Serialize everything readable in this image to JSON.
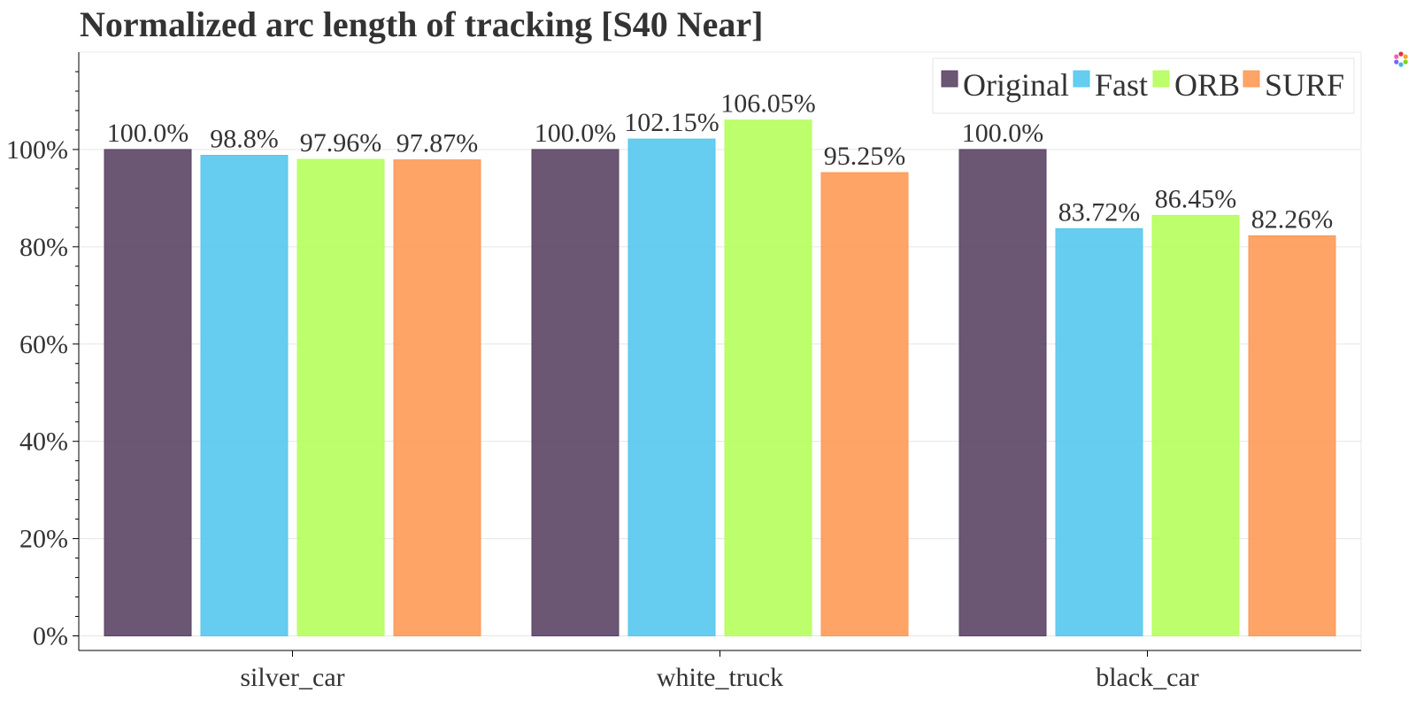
{
  "toolbar": {
    "logo_icon": "bokeh-logo-icon",
    "logo_colors": [
      "#e02f4b",
      "#f5a623",
      "#7ed321",
      "#3fb5e8",
      "#7b61ff",
      "#ff5ca8"
    ]
  },
  "chart_data": {
    "type": "bar",
    "title": "Normalized arc length of tracking [S40 Near]",
    "xlabel": "",
    "ylabel": "",
    "categories": [
      "silver_car",
      "white_truck",
      "black_car"
    ],
    "series": [
      {
        "name": "Original",
        "color": "#5b4465",
        "values": [
          100.0,
          100.0,
          100.0
        ],
        "labels": [
          "100.0%",
          "100.0%",
          "100.0%"
        ]
      },
      {
        "name": "Fast",
        "color": "#56c8ee",
        "values": [
          98.8,
          102.15,
          83.72
        ],
        "labels": [
          "98.8%",
          "102.15%",
          "83.72%"
        ]
      },
      {
        "name": "ORB",
        "color": "#b6fe5c",
        "values": [
          97.96,
          106.05,
          86.45
        ],
        "labels": [
          "97.96%",
          "106.05%",
          "86.45%"
        ]
      },
      {
        "name": "SURF",
        "color": "#fd9a55",
        "values": [
          97.87,
          95.25,
          82.26
        ],
        "labels": [
          "97.87%",
          "95.25%",
          "82.26%"
        ]
      }
    ],
    "ylim": [
      -3,
      120
    ],
    "yticks": [
      0,
      20,
      40,
      60,
      80,
      100
    ],
    "ytick_labels": [
      "0%",
      "20%",
      "40%",
      "60%",
      "80%",
      "100%"
    ],
    "grid": true,
    "legend_position": "top-right"
  }
}
